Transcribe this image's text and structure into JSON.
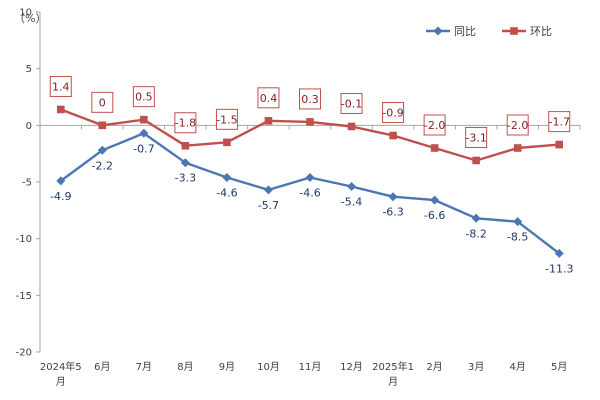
{
  "chart_data": {
    "type": "line",
    "unit": "（%）",
    "categories": [
      [
        "2024年5",
        "月"
      ],
      [
        "6月"
      ],
      [
        "7月"
      ],
      [
        "8月"
      ],
      [
        "9月"
      ],
      [
        "10月"
      ],
      [
        "11月"
      ],
      [
        "12月"
      ],
      [
        "2025年1",
        "月"
      ],
      [
        "2月"
      ],
      [
        "3月"
      ],
      [
        "4月"
      ],
      [
        "5月"
      ]
    ],
    "ylim": [
      -20,
      10
    ],
    "yticks": [
      10,
      5,
      0,
      -5,
      -10,
      -15,
      -20
    ],
    "series": [
      {
        "name": "同比",
        "color": "#4a77b3",
        "marker": "diamond",
        "values": [
          -4.9,
          -2.2,
          -0.7,
          -3.3,
          -4.6,
          -5.7,
          -4.6,
          -5.4,
          -6.3,
          -6.6,
          -8.2,
          -8.5,
          -11.3
        ],
        "labels": [
          "-4.9",
          "-2.2",
          "-0.7",
          "-3.3",
          "-4.6",
          "-5.7",
          "-4.6",
          "-5.4",
          "-6.3",
          "-6.6",
          "-8.2",
          "-8.5",
          "-11.3"
        ]
      },
      {
        "name": "环比",
        "color": "#c0504d",
        "marker": "square",
        "values": [
          1.4,
          0,
          0.5,
          -1.8,
          -1.5,
          0.4,
          0.3,
          -0.1,
          -0.9,
          -2.0,
          -3.1,
          -2.0,
          -1.7
        ],
        "labels": [
          "1.4",
          "0",
          "0.5",
          "-1.8",
          "-1.5",
          "0.4",
          "0.3",
          "-0.1",
          "-0.9",
          "-2.0",
          "-3.1",
          "-2.0",
          "-1.7"
        ]
      }
    ],
    "grid": false,
    "legend_position": "top-right"
  }
}
